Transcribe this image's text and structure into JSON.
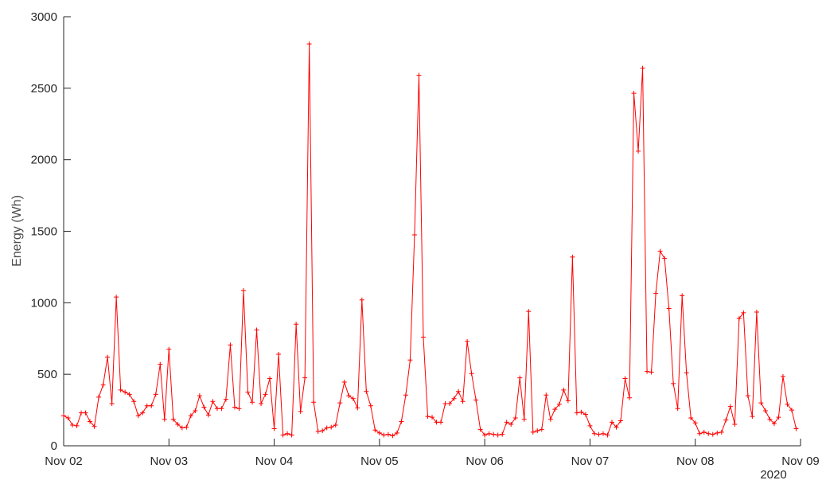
{
  "chart_data": {
    "type": "line",
    "ylabel": "Energy (Wh)",
    "year_label": "2020",
    "xlim": [
      0,
      168
    ],
    "xticks": [
      {
        "value": 0,
        "label": "Nov 02"
      },
      {
        "value": 24,
        "label": "Nov 03"
      },
      {
        "value": 48,
        "label": "Nov 04"
      },
      {
        "value": 72,
        "label": "Nov 05"
      },
      {
        "value": 96,
        "label": "Nov 06"
      },
      {
        "value": 120,
        "label": "Nov 07"
      },
      {
        "value": 144,
        "label": "Nov 08"
      },
      {
        "value": 168,
        "label": "Nov 09"
      }
    ],
    "ylim": [
      0,
      3000
    ],
    "yticks": [
      0,
      500,
      1000,
      1500,
      2000,
      2500,
      3000
    ],
    "grid": false,
    "series": [
      {
        "color": "#ff0000",
        "marker": "+",
        "values": [
          210,
          195,
          145,
          140,
          230,
          230,
          170,
          135,
          340,
          425,
          620,
          295,
          1040,
          390,
          375,
          360,
          310,
          210,
          230,
          280,
          280,
          360,
          570,
          185,
          675,
          185,
          150,
          125,
          130,
          210,
          245,
          350,
          270,
          215,
          310,
          260,
          260,
          325,
          705,
          270,
          260,
          1085,
          375,
          305,
          810,
          295,
          360,
          470,
          120,
          640,
          75,
          85,
          75,
          850,
          240,
          475,
          2810,
          305,
          100,
          105,
          125,
          130,
          145,
          300,
          445,
          350,
          330,
          265,
          1020,
          380,
          280,
          110,
          90,
          75,
          80,
          70,
          90,
          170,
          355,
          600,
          1475,
          2590,
          760,
          205,
          200,
          165,
          165,
          295,
          295,
          330,
          380,
          310,
          730,
          505,
          320,
          115,
          75,
          85,
          80,
          75,
          80,
          165,
          150,
          195,
          475,
          185,
          940,
          95,
          105,
          115,
          355,
          185,
          255,
          290,
          390,
          315,
          1320,
          230,
          235,
          220,
          140,
          85,
          80,
          85,
          75,
          165,
          130,
          175,
          470,
          335,
          2465,
          2060,
          2640,
          520,
          515,
          1065,
          1360,
          1310,
          960,
          435,
          260,
          1050,
          510,
          195,
          160,
          85,
          95,
          85,
          80,
          90,
          95,
          180,
          275,
          150,
          890,
          930,
          350,
          205,
          935,
          300,
          245,
          185,
          155,
          200,
          485,
          290,
          250,
          120
        ]
      }
    ]
  }
}
